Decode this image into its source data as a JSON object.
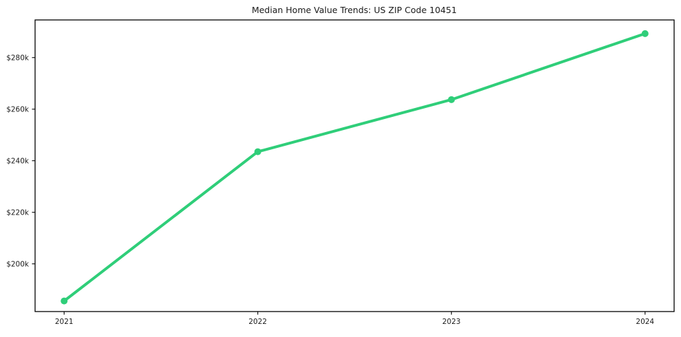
{
  "page": {
    "background": "#ffffff"
  },
  "chart_data": {
    "type": "line",
    "title": "Median Home Value Trends: US ZIP Code 10451",
    "categories": [
      "2021",
      "2022",
      "2023",
      "2024"
    ],
    "x": [
      2021,
      2022,
      2023,
      2024
    ],
    "series": [
      {
        "name": "Median home value",
        "values": [
          185600,
          243500,
          263700,
          289300
        ],
        "color": "#2fce79",
        "marker": "circle",
        "line_width": 4,
        "marker_radius": 5
      }
    ],
    "xlabel": "",
    "ylabel": "",
    "xlim": [
      2020.85,
      2024.15
    ],
    "ylim": [
      181500,
      294600
    ],
    "yticks": [
      {
        "value": 200000,
        "label": "$200k"
      },
      {
        "value": 220000,
        "label": "$220k"
      },
      {
        "value": 240000,
        "label": "$240k"
      },
      {
        "value": 260000,
        "label": "$260k"
      },
      {
        "value": 280000,
        "label": "$280k"
      }
    ],
    "grid": false,
    "legend": "none",
    "axis_color": "#000000",
    "text_color": "#1a1a1a"
  }
}
